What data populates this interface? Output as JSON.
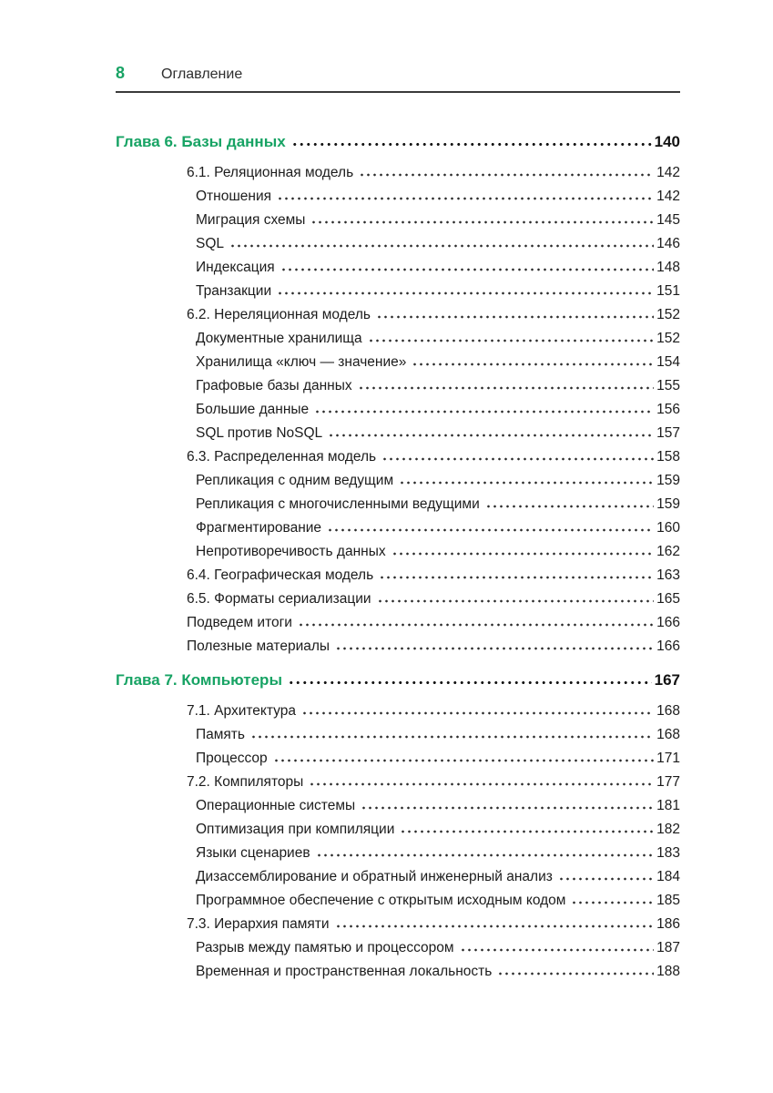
{
  "header": {
    "page_number": "8",
    "title": "Оглавление"
  },
  "colors": {
    "accent_green": "#17a364",
    "text": "#1c1c1c"
  },
  "toc": {
    "chapters": [
      {
        "label": "Глава 6. Базы данных",
        "page": "140",
        "entries": [
          {
            "level": "section",
            "label": "6.1. Реляционная модель",
            "page": "142"
          },
          {
            "level": "sub",
            "label": "Отношения",
            "page": "142"
          },
          {
            "level": "sub",
            "label": "Миграция схемы",
            "page": "145"
          },
          {
            "level": "sub",
            "label": "SQL",
            "page": "146"
          },
          {
            "level": "sub",
            "label": "Индексация",
            "page": "148"
          },
          {
            "level": "sub",
            "label": "Транзакции",
            "page": "151"
          },
          {
            "level": "section",
            "label": "6.2. Нереляционная модель",
            "page": "152"
          },
          {
            "level": "sub",
            "label": "Документные хранилища",
            "page": "152"
          },
          {
            "level": "sub",
            "label": "Хранилища «ключ — значение»",
            "page": "154"
          },
          {
            "level": "sub",
            "label": "Графовые базы данных",
            "page": "155"
          },
          {
            "level": "sub",
            "label": "Большие данные",
            "page": "156"
          },
          {
            "level": "sub",
            "label": "SQL против NoSQL",
            "page": "157"
          },
          {
            "level": "section",
            "label": "6.3. Распределенная модель",
            "page": "158"
          },
          {
            "level": "sub",
            "label": "Репликация с одним ведущим",
            "page": "159"
          },
          {
            "level": "sub",
            "label": "Репликация с многочисленными ведущими",
            "page": "159"
          },
          {
            "level": "sub",
            "label": "Фрагментирование",
            "page": "160"
          },
          {
            "level": "sub",
            "label": "Непротиворечивость данных",
            "page": "162"
          },
          {
            "level": "section",
            "label": "6.4. Географическая модель",
            "page": "163"
          },
          {
            "level": "section",
            "label": "6.5. Форматы сериализации",
            "page": "165"
          },
          {
            "level": "section",
            "label": "Подведем итоги",
            "page": "166"
          },
          {
            "level": "section",
            "label": "Полезные материалы",
            "page": "166"
          }
        ]
      },
      {
        "label": "Глава 7. Компьютеры",
        "page": "167",
        "entries": [
          {
            "level": "section",
            "label": "7.1. Архитектура",
            "page": "168"
          },
          {
            "level": "sub",
            "label": "Память",
            "page": "168"
          },
          {
            "level": "sub",
            "label": "Процессор",
            "page": "171"
          },
          {
            "level": "section",
            "label": "7.2. Компиляторы",
            "page": "177"
          },
          {
            "level": "sub",
            "label": "Операционные системы",
            "page": "181"
          },
          {
            "level": "sub",
            "label": "Оптимизация при компиляции",
            "page": "182"
          },
          {
            "level": "sub",
            "label": "Языки сценариев",
            "page": "183"
          },
          {
            "level": "sub",
            "label": "Дизассемблирование и обратный инженерный анализ",
            "page": "184"
          },
          {
            "level": "sub",
            "label": "Программное обеспечение с открытым исходным кодом",
            "page": "185"
          },
          {
            "level": "section",
            "label": "7.3. Иерархия памяти",
            "page": "186"
          },
          {
            "level": "sub",
            "label": "Разрыв между памятью и процессором",
            "page": "187"
          },
          {
            "level": "sub",
            "label": "Временная и пространственная локальность",
            "page": "188"
          }
        ]
      }
    ]
  }
}
